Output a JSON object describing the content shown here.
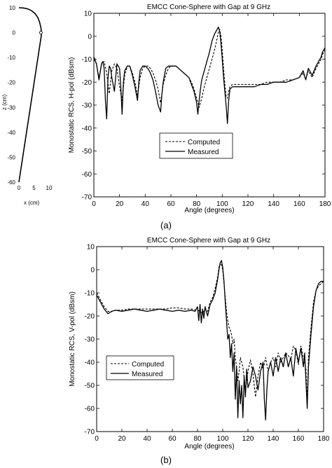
{
  "chart_data": [
    {
      "id": "geometry",
      "type": "line",
      "title": "",
      "xlabel": "x (cm)",
      "ylabel": "z (cm)",
      "xlim": [
        0,
        10
      ],
      "ylim": [
        -60,
        10
      ],
      "xticks": [
        "0",
        "5",
        "10"
      ],
      "yticks": [
        "10",
        "0",
        "-10",
        "-20",
        "-30",
        "-40",
        "-50",
        "-60"
      ],
      "series": [
        {
          "x": [
            0,
            1.5,
            3.0,
            4.2,
            5.4,
            6.3,
            6.9,
            7.3,
            7.5,
            7.4,
            0
          ],
          "y": [
            10,
            9.9,
            9.5,
            8.8,
            7.6,
            6.0,
            4.0,
            2.0,
            0,
            -1.5,
            -60
          ]
        }
      ],
      "markers": [
        {
          "x": 7.3,
          "y": 0
        }
      ]
    },
    {
      "id": "panel-a",
      "type": "line",
      "title": "EMCC Cone-Sphere with Gap at 9 GHz",
      "xlabel": "Angle (degrees)",
      "ylabel": "Monostatic RCS, H-pol (dBsm)",
      "xlim": [
        0,
        180
      ],
      "ylim": [
        -70,
        10
      ],
      "xticks": [
        "0",
        "20",
        "40",
        "60",
        "80",
        "100",
        "120",
        "140",
        "160",
        "180"
      ],
      "yticks": [
        "10",
        "0",
        "-10",
        "-20",
        "-30",
        "-40",
        "-50",
        "-60",
        "-70"
      ],
      "legend_position": "center-left",
      "grid": false,
      "caption": "(a)",
      "series": [
        {
          "name": "Computed",
          "style": "dashed",
          "x": [
            0,
            2,
            4,
            6,
            8,
            10,
            12,
            14,
            16,
            18,
            20,
            22,
            24,
            26,
            28,
            30,
            32,
            34,
            36,
            38,
            40,
            42,
            44,
            46,
            48,
            50,
            52,
            54,
            56,
            58,
            60,
            62,
            64,
            66,
            68,
            70,
            72,
            74,
            76,
            78,
            80,
            82,
            84,
            86,
            88,
            90,
            92,
            94,
            96,
            97,
            98,
            99,
            100,
            101,
            102,
            103,
            104,
            105,
            106,
            108,
            110,
            115,
            120,
            125,
            130,
            135,
            140,
            145,
            150,
            155,
            160,
            163,
            165,
            167,
            170,
            173,
            175,
            177,
            178,
            179,
            180
          ],
          "y": [
            -10,
            -12,
            -18,
            -12,
            -11,
            -16,
            -25,
            -15,
            -12,
            -14,
            -22,
            -28,
            -17,
            -13,
            -13,
            -16,
            -20,
            -26,
            -18,
            -14,
            -13,
            -13,
            -14,
            -16,
            -19,
            -23,
            -29,
            -21,
            -17,
            -14,
            -13,
            -13,
            -13,
            -14,
            -15,
            -16,
            -17,
            -18,
            -20,
            -23,
            -27,
            -31,
            -27,
            -22,
            -18,
            -14,
            -10,
            -6,
            -1,
            2,
            3,
            0,
            -6,
            -14,
            -21,
            -26,
            -27,
            -24,
            -22,
            -21,
            -21,
            -21,
            -21,
            -21,
            -21,
            -20,
            -20,
            -20,
            -19,
            -19,
            -18,
            -16,
            -19,
            -15,
            -18,
            -14,
            -12,
            -10,
            -8,
            -7,
            -6
          ]
        },
        {
          "name": "Measured",
          "style": "solid",
          "x": [
            0,
            2,
            4,
            6,
            7,
            8,
            9,
            10,
            11,
            12,
            13,
            14,
            16,
            18,
            20,
            21,
            22,
            23,
            24,
            26,
            28,
            30,
            32,
            34,
            35,
            36,
            37,
            38,
            40,
            42,
            44,
            46,
            48,
            50,
            52,
            53,
            54,
            55,
            56,
            58,
            60,
            62,
            64,
            66,
            68,
            70,
            72,
            74,
            76,
            78,
            80,
            81,
            82,
            83,
            84,
            86,
            88,
            90,
            92,
            94,
            96,
            97,
            98,
            99,
            100,
            101,
            102,
            103,
            104,
            105,
            106,
            108,
            110,
            115,
            120,
            125,
            130,
            135,
            140,
            145,
            150,
            155,
            160,
            163,
            165,
            167,
            170,
            173,
            175,
            177,
            178,
            179,
            180
          ],
          "y": [
            -9,
            -12,
            -19,
            -12,
            -11,
            -14,
            -28,
            -36,
            -18,
            -13,
            -14,
            -18,
            -24,
            -12,
            -14,
            -22,
            -34,
            -20,
            -15,
            -13,
            -13,
            -17,
            -22,
            -28,
            -20,
            -15,
            -14,
            -13,
            -13,
            -14,
            -16,
            -19,
            -24,
            -30,
            -33,
            -25,
            -20,
            -17,
            -14,
            -13,
            -13,
            -13,
            -13,
            -14,
            -15,
            -16,
            -17,
            -18,
            -21,
            -24,
            -29,
            -34,
            -28,
            -23,
            -19,
            -15,
            -11,
            -7,
            -2,
            1,
            3,
            4,
            2,
            -3,
            -10,
            -18,
            -24,
            -30,
            -38,
            -28,
            -23,
            -22,
            -22,
            -22,
            -22,
            -22,
            -21,
            -21,
            -20,
            -20,
            -20,
            -19,
            -18,
            -15,
            -19,
            -14,
            -17,
            -13,
            -11,
            -9,
            -7,
            -6,
            -5
          ]
        }
      ]
    },
    {
      "id": "panel-b",
      "type": "line",
      "title": "EMCC Cone-Sphere with Gap at 9 GHz",
      "xlabel": "Angle (degrees)",
      "ylabel": "Monostatic RCS, V-pol (dBsm)",
      "xlim": [
        0,
        180
      ],
      "ylim": [
        -70,
        10
      ],
      "xticks": [
        "0",
        "20",
        "40",
        "60",
        "80",
        "100",
        "120",
        "140",
        "160",
        "180"
      ],
      "yticks": [
        "10",
        "0",
        "-10",
        "-20",
        "-30",
        "-40",
        "-50",
        "-60",
        "-70"
      ],
      "legend_position": "center-left",
      "grid": false,
      "caption": "(b)",
      "series": [
        {
          "name": "Computed",
          "style": "dashed",
          "x": [
            0,
            3,
            6,
            9,
            12,
            15,
            20,
            25,
            30,
            35,
            40,
            45,
            50,
            55,
            60,
            65,
            70,
            75,
            80,
            82,
            84,
            86,
            88,
            90,
            92,
            94,
            96,
            97,
            98,
            99,
            100,
            101,
            102,
            103,
            104,
            105,
            106,
            107,
            108,
            109,
            110,
            111,
            112,
            113,
            114,
            116,
            118,
            120,
            122,
            124,
            126,
            128,
            130,
            132,
            134,
            136,
            138,
            140,
            142,
            144,
            146,
            148,
            150,
            152,
            154,
            156,
            158,
            160,
            162,
            164,
            165,
            166,
            167,
            168,
            170,
            172,
            174,
            176,
            178,
            180
          ],
          "y": [
            -10,
            -13,
            -16,
            -18,
            -18,
            -17.5,
            -17.5,
            -17,
            -17,
            -17,
            -17,
            -17,
            -17,
            -17,
            -16.5,
            -16.5,
            -17,
            -17,
            -17.5,
            -18,
            -19,
            -17,
            -18,
            -14,
            -12,
            -8,
            -3,
            1,
            3,
            2,
            0,
            -6,
            -12,
            -18,
            -22,
            -25,
            -26,
            -28,
            -32,
            -30,
            -38,
            -42,
            -48,
            -44,
            -38,
            -42,
            -52,
            -44,
            -39,
            -45,
            -55,
            -46,
            -40,
            -43,
            -38,
            -44,
            -40,
            -38,
            -42,
            -36,
            -40,
            -38,
            -36,
            -37,
            -39,
            -33,
            -35,
            -41,
            -33,
            -38,
            -40,
            -43,
            -57,
            -38,
            -25,
            -14,
            -9,
            -7,
            -6,
            -5
          ]
        },
        {
          "name": "Measured",
          "style": "solid",
          "x": [
            0,
            3,
            6,
            9,
            12,
            15,
            20,
            25,
            30,
            35,
            40,
            45,
            50,
            55,
            60,
            65,
            70,
            75,
            78,
            80,
            81,
            82,
            83,
            84,
            85,
            86,
            88,
            90,
            92,
            94,
            96,
            97,
            98,
            99,
            100,
            101,
            102,
            103,
            104,
            105,
            106,
            107,
            108,
            109,
            110,
            111,
            112,
            113,
            114,
            115,
            116,
            117,
            118,
            119,
            120,
            122,
            124,
            126,
            128,
            130,
            132,
            133,
            134,
            135,
            136,
            138,
            140,
            142,
            144,
            146,
            148,
            150,
            152,
            154,
            156,
            158,
            160,
            162,
            164,
            165,
            166,
            167,
            168,
            170,
            172,
            174,
            176,
            178,
            180
          ],
          "y": [
            -11,
            -14,
            -17,
            -19,
            -18,
            -17.5,
            -18,
            -17.5,
            -17,
            -17.5,
            -18,
            -17.5,
            -17,
            -17.5,
            -18,
            -17.5,
            -18,
            -17.5,
            -18,
            -16,
            -22,
            -15,
            -23,
            -17,
            -21,
            -16,
            -20,
            -15,
            -13,
            -10,
            -4,
            0,
            3,
            4,
            1,
            -5,
            -14,
            -22,
            -30,
            -28,
            -38,
            -32,
            -44,
            -36,
            -56,
            -42,
            -64,
            -48,
            -58,
            -50,
            -64,
            -46,
            -55,
            -43,
            -51,
            -48,
            -42,
            -46,
            -52,
            -44,
            -40,
            -56,
            -65,
            -52,
            -44,
            -40,
            -46,
            -38,
            -44,
            -38,
            -42,
            -36,
            -42,
            -38,
            -46,
            -34,
            -40,
            -34,
            -42,
            -36,
            -48,
            -60,
            -42,
            -28,
            -16,
            -9,
            -6,
            -5,
            -5
          ]
        }
      ]
    }
  ]
}
